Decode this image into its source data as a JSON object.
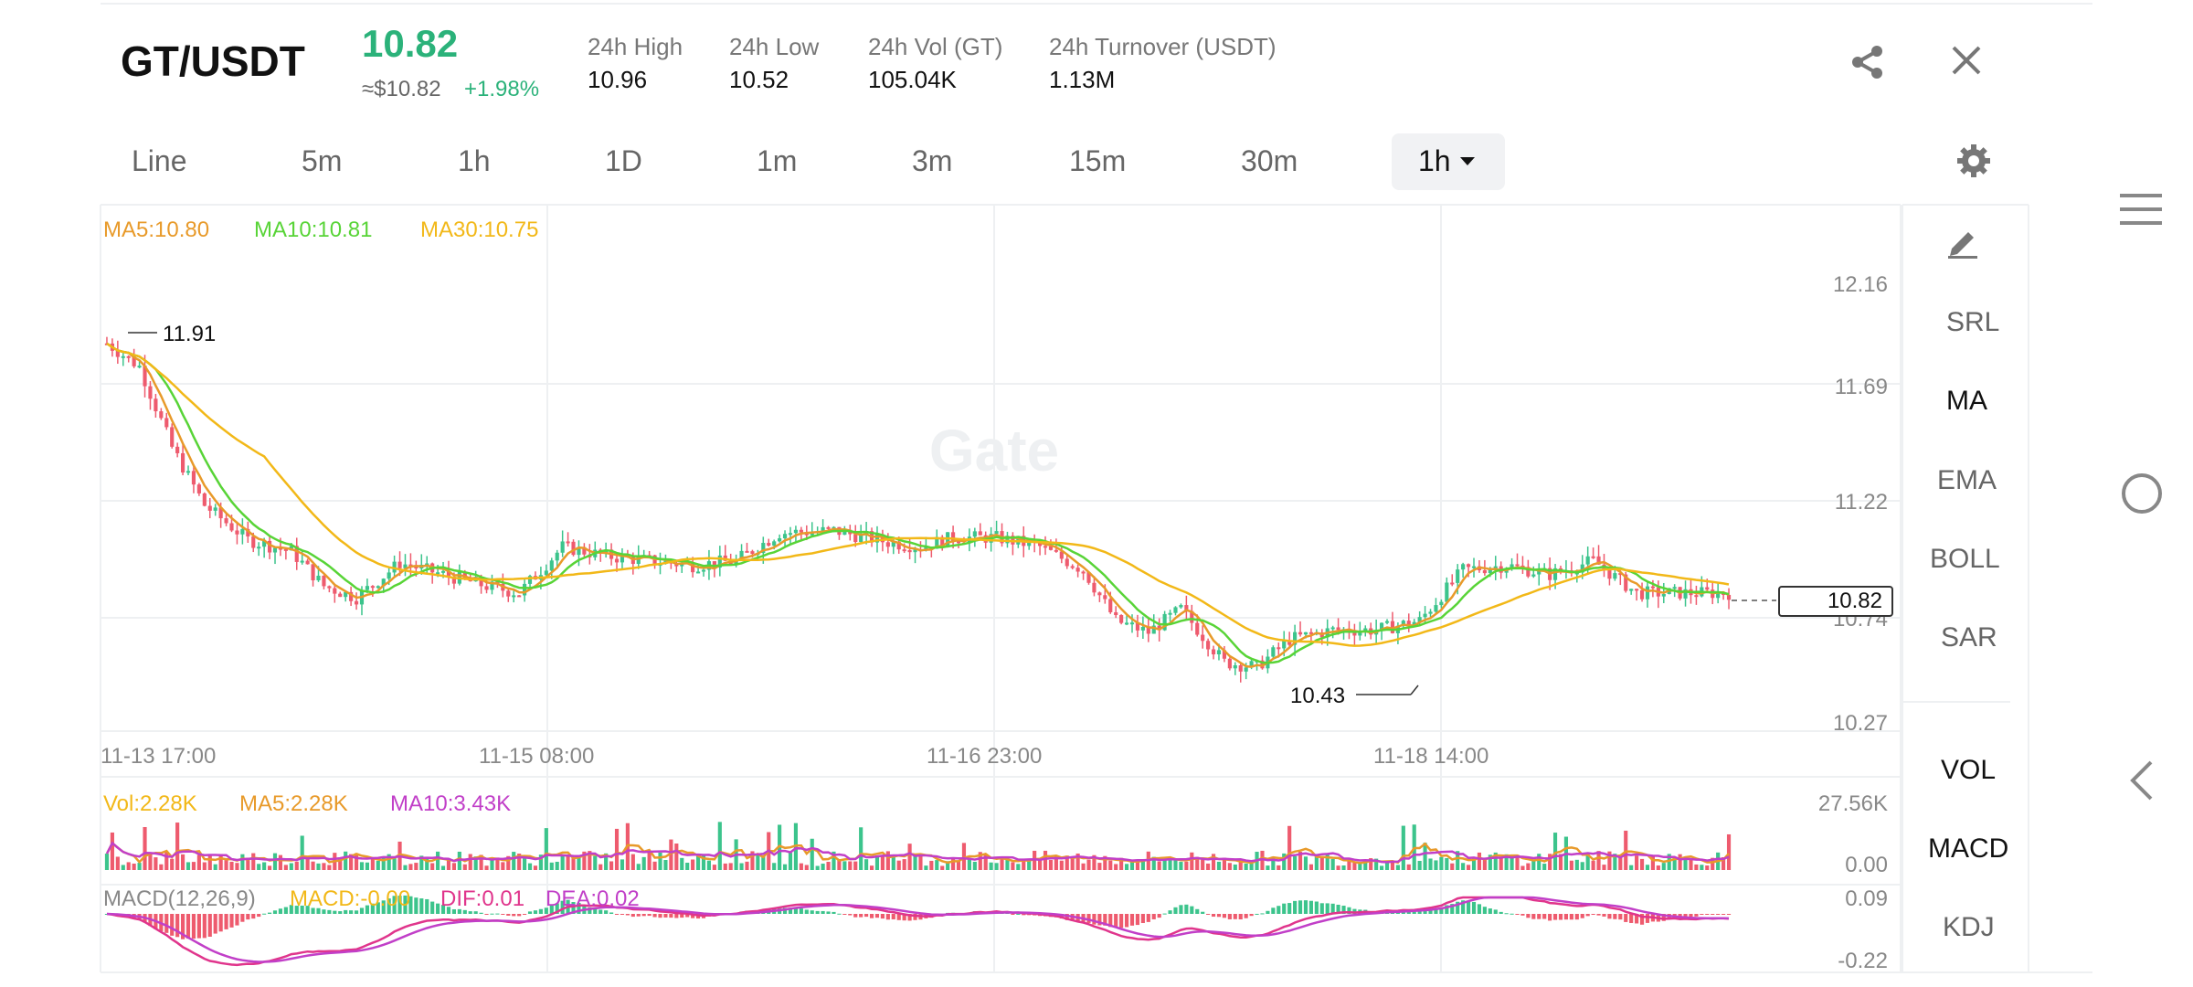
{
  "header": {
    "pair": "GT/USDT",
    "price": "10.82",
    "usd_price": "≈$10.82",
    "change": "+1.98%",
    "stats": [
      {
        "label": "24h High",
        "value": "10.96"
      },
      {
        "label": "24h Low",
        "value": "10.52"
      },
      {
        "label": "24h Vol (GT)",
        "value": "105.04K"
      },
      {
        "label": "24h Turnover (USDT)",
        "value": "1.13M"
      }
    ]
  },
  "tabs": [
    "Line",
    "5m",
    "1h",
    "1D",
    "1m",
    "3m",
    "15m",
    "30m"
  ],
  "active_tab": "1h",
  "indicators_top": [
    "SRL",
    "MA",
    "EMA",
    "BOLL",
    "SAR"
  ],
  "indicators_bottom": [
    "VOL",
    "MACD",
    "KDJ"
  ],
  "ma_legend": {
    "ma5": "MA5:10.80",
    "ma10": "MA10:10.81",
    "ma30": "MA30:10.75"
  },
  "vol_legend": {
    "vol": "Vol:2.28K",
    "ma5": "MA5:2.28K",
    "ma10": "MA10:3.43K"
  },
  "macd_legend": {
    "title": "MACD(12,26,9)",
    "macd": "MACD:-0.00",
    "dif": "DIF:0.01",
    "dea": "DEA:0.02"
  },
  "price_axis": [
    "12.16",
    "11.69",
    "11.22",
    "10.74",
    "10.27"
  ],
  "vol_axis": [
    "27.56K",
    "0.00"
  ],
  "macd_axis": [
    "0.09",
    "-0.22"
  ],
  "time_axis": [
    "11-13 17:00",
    "11-15 08:00",
    "11-16 23:00",
    "11-18 14:00"
  ],
  "annotations": {
    "high": "11.91",
    "low": "10.43",
    "current": "10.82"
  },
  "watermark": "Gate",
  "colors": {
    "up": "#3cc48c",
    "down": "#ee5b6e",
    "ma5": "#e89a2a",
    "ma10": "#58d437",
    "ma30": "#f2b818",
    "vol_ma10": "#c13fc8",
    "accent": "#2bb27a"
  },
  "icons": [
    "share-icon",
    "close-icon",
    "settings-gear-icon",
    "draw-pencil-icon",
    "menu-icon",
    "home-circle-icon",
    "back-icon"
  ]
}
